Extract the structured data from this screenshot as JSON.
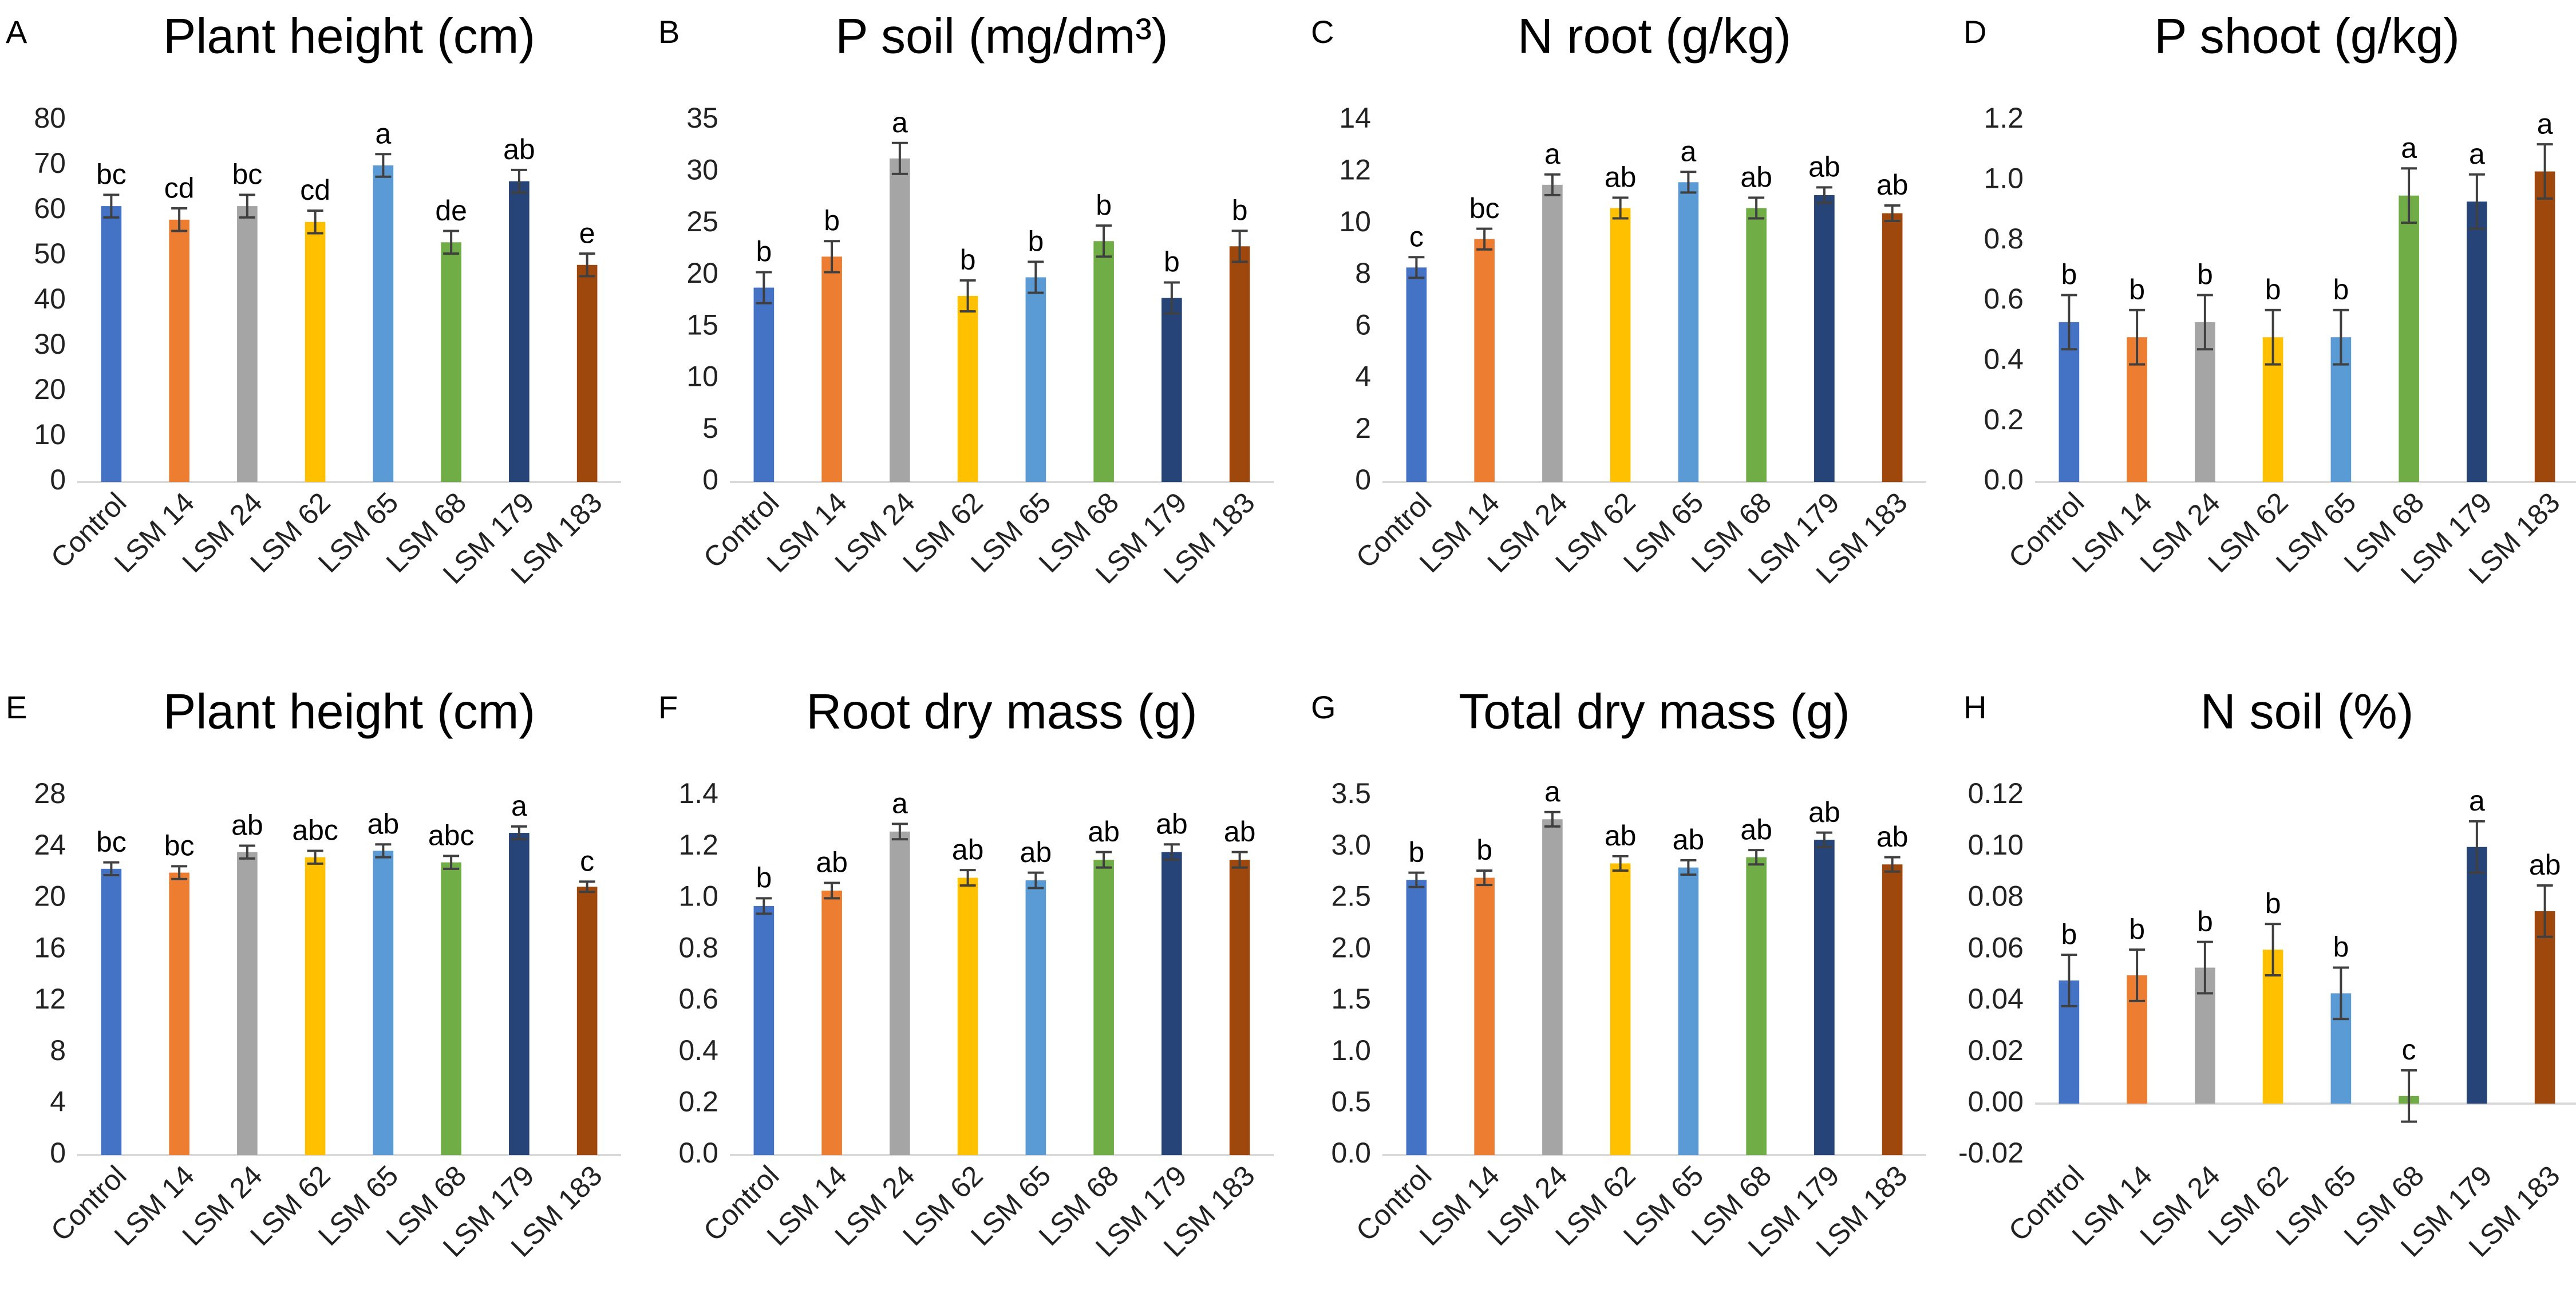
{
  "chart_data": [
    {
      "type": "bar",
      "panel": "A",
      "title": "Plant height (cm)",
      "categories": [
        "Control",
        "LSM 14",
        "LSM 24",
        "LSM 62",
        "LSM 65",
        "LSM 68",
        "LSM 179",
        "LSM 183"
      ],
      "values": [
        61,
        58,
        61,
        57.5,
        70,
        53,
        66.5,
        48
      ],
      "errors": [
        2.5,
        2.5,
        2.5,
        2.5,
        2.5,
        2.5,
        2.5,
        2.5
      ],
      "annotations": [
        "bc",
        "cd",
        "bc",
        "cd",
        "a",
        "de",
        "ab",
        "e"
      ],
      "colors": [
        "#4472c4",
        "#ed7d31",
        "#a5a5a5",
        "#ffc000",
        "#5b9bd5",
        "#70ad47",
        "#264478",
        "#9e480e"
      ],
      "ylim": [
        0,
        80
      ],
      "yticks": [
        0,
        10,
        20,
        30,
        40,
        50,
        60,
        70,
        80
      ]
    },
    {
      "type": "bar",
      "panel": "B",
      "title": "P soil (mg/dm³)",
      "categories": [
        "Control",
        "LSM 14",
        "LSM 24",
        "LSM 62",
        "LSM 65",
        "LSM 68",
        "LSM 179",
        "LSM 183"
      ],
      "values": [
        18.8,
        21.8,
        31.3,
        18,
        19.8,
        23.3,
        17.8,
        22.8
      ],
      "errors": [
        1.5,
        1.5,
        1.5,
        1.5,
        1.5,
        1.5,
        1.5,
        1.5
      ],
      "annotations": [
        "b",
        "b",
        "a",
        "b",
        "b",
        "b",
        "b",
        "b"
      ],
      "colors": [
        "#4472c4",
        "#ed7d31",
        "#a5a5a5",
        "#ffc000",
        "#5b9bd5",
        "#70ad47",
        "#264478",
        "#9e480e"
      ],
      "ylim": [
        0,
        35
      ],
      "yticks": [
        0,
        5,
        10,
        15,
        20,
        25,
        30,
        35
      ]
    },
    {
      "type": "bar",
      "panel": "C",
      "title": "N root (g/kg)",
      "categories": [
        "Control",
        "LSM 14",
        "LSM 24",
        "LSM 62",
        "LSM 65",
        "LSM 68",
        "LSM 179",
        "LSM 183"
      ],
      "values": [
        8.3,
        9.4,
        11.5,
        10.6,
        11.6,
        10.6,
        11.1,
        10.4
      ],
      "errors": [
        0.4,
        0.4,
        0.4,
        0.4,
        0.4,
        0.4,
        0.3,
        0.3
      ],
      "annotations": [
        "c",
        "bc",
        "a",
        "ab",
        "a",
        "ab",
        "ab",
        "ab"
      ],
      "colors": [
        "#4472c4",
        "#ed7d31",
        "#a5a5a5",
        "#ffc000",
        "#5b9bd5",
        "#70ad47",
        "#264478",
        "#9e480e"
      ],
      "ylim": [
        0,
        14
      ],
      "yticks": [
        0,
        2,
        4,
        6,
        8,
        10,
        12,
        14
      ]
    },
    {
      "type": "bar",
      "panel": "D",
      "title": "P shoot (g/kg)",
      "categories": [
        "Control",
        "LSM 14",
        "LSM 24",
        "LSM 62",
        "LSM 65",
        "LSM 68",
        "LSM 179",
        "LSM 183"
      ],
      "values": [
        0.53,
        0.48,
        0.53,
        0.48,
        0.48,
        0.95,
        0.93,
        1.03
      ],
      "errors": [
        0.09,
        0.09,
        0.09,
        0.09,
        0.09,
        0.09,
        0.09,
        0.09
      ],
      "annotations": [
        "b",
        "b",
        "b",
        "b",
        "b",
        "a",
        "a",
        "a"
      ],
      "colors": [
        "#4472c4",
        "#ed7d31",
        "#a5a5a5",
        "#ffc000",
        "#5b9bd5",
        "#70ad47",
        "#264478",
        "#9e480e"
      ],
      "ylim": [
        0,
        1.2
      ],
      "yticks": [
        {
          "value": 0,
          "label": "0.0"
        },
        0.2,
        0.4,
        0.6,
        0.8,
        {
          "value": 1,
          "label": "1.0"
        },
        1.2
      ]
    },
    {
      "type": "bar",
      "panel": "E",
      "title": "Plant height (cm)",
      "categories": [
        "Control",
        "LSM 14",
        "LSM 24",
        "LSM 62",
        "LSM 65",
        "LSM 68",
        "LSM 179",
        "LSM 183"
      ],
      "values": [
        22.3,
        22,
        23.6,
        23.2,
        23.7,
        22.8,
        25.1,
        20.9
      ],
      "errors": [
        0.5,
        0.5,
        0.5,
        0.5,
        0.5,
        0.5,
        0.5,
        0.4
      ],
      "annotations": [
        "bc",
        "bc",
        "ab",
        "abc",
        "ab",
        "abc",
        "a",
        "c"
      ],
      "colors": [
        "#4472c4",
        "#ed7d31",
        "#a5a5a5",
        "#ffc000",
        "#5b9bd5",
        "#70ad47",
        "#264478",
        "#9e480e"
      ],
      "ylim": [
        0,
        28
      ],
      "yticks": [
        0,
        4,
        8,
        12,
        16,
        20,
        24,
        28
      ]
    },
    {
      "type": "bar",
      "panel": "F",
      "title": "Root dry mass (g)",
      "categories": [
        "Control",
        "LSM 14",
        "LSM 24",
        "LSM 62",
        "LSM 65",
        "LSM 68",
        "LSM 179",
        "LSM 183"
      ],
      "values": [
        0.97,
        1.03,
        1.26,
        1.08,
        1.07,
        1.15,
        1.18,
        1.15
      ],
      "errors": [
        0.03,
        0.03,
        0.03,
        0.03,
        0.03,
        0.03,
        0.03,
        0.03
      ],
      "annotations": [
        "b",
        "ab",
        "a",
        "ab",
        "ab",
        "ab",
        "ab",
        "ab"
      ],
      "colors": [
        "#4472c4",
        "#ed7d31",
        "#a5a5a5",
        "#ffc000",
        "#5b9bd5",
        "#70ad47",
        "#264478",
        "#9e480e"
      ],
      "ylim": [
        0,
        1.4
      ],
      "yticks": [
        {
          "value": 0,
          "label": "0.0"
        },
        0.2,
        0.4,
        0.6,
        0.8,
        {
          "value": 1,
          "label": "1.0"
        },
        1.2,
        1.4
      ]
    },
    {
      "type": "bar",
      "panel": "G",
      "title": "Total dry mass (g)",
      "categories": [
        "Control",
        "LSM 14",
        "LSM 24",
        "LSM 62",
        "LSM 65",
        "LSM 68",
        "LSM 179",
        "LSM 183"
      ],
      "values": [
        2.68,
        2.7,
        3.27,
        2.84,
        2.8,
        2.9,
        3.07,
        2.83
      ],
      "errors": [
        0.07,
        0.07,
        0.07,
        0.07,
        0.07,
        0.07,
        0.07,
        0.07
      ],
      "annotations": [
        "b",
        "b",
        "a",
        "ab",
        "ab",
        "ab",
        "ab",
        "ab"
      ],
      "colors": [
        "#4472c4",
        "#ed7d31",
        "#a5a5a5",
        "#ffc000",
        "#5b9bd5",
        "#70ad47",
        "#264478",
        "#9e480e"
      ],
      "ylim": [
        0,
        3.5
      ],
      "yticks": [
        {
          "value": 0,
          "label": "0.0"
        },
        0.5,
        {
          "value": 1,
          "label": "1.0"
        },
        1.5,
        {
          "value": 2,
          "label": "2.0"
        },
        2.5,
        {
          "value": 3,
          "label": "3.0"
        },
        3.5
      ]
    },
    {
      "type": "bar",
      "panel": "H",
      "title": "N soil (%)",
      "categories": [
        "Control",
        "LSM 14",
        "LSM 24",
        "LSM 62",
        "LSM 65",
        "LSM 68",
        "LSM 179",
        "LSM 183"
      ],
      "values": [
        0.048,
        0.05,
        0.053,
        0.06,
        0.043,
        0.003,
        0.1,
        0.075
      ],
      "errors": [
        0.01,
        0.01,
        0.01,
        0.01,
        0.01,
        0.01,
        0.01,
        0.01
      ],
      "annotations": [
        "b",
        "b",
        "b",
        "b",
        "b",
        "c",
        "a",
        "ab"
      ],
      "colors": [
        "#4472c4",
        "#ed7d31",
        "#a5a5a5",
        "#ffc000",
        "#5b9bd5",
        "#70ad47",
        "#264478",
        "#9e480e"
      ],
      "ylim": [
        -0.02,
        0.12
      ],
      "yticks": [
        {
          "value": -0.02,
          "label": "-0.02"
        },
        {
          "value": 0,
          "label": "0.00"
        },
        {
          "value": 0.02,
          "label": "0.02"
        },
        {
          "value": 0.04,
          "label": "0.04"
        },
        {
          "value": 0.06,
          "label": "0.06"
        },
        {
          "value": 0.08,
          "label": "0.08"
        },
        {
          "value": 0.1,
          "label": "0.10"
        },
        {
          "value": 0.12,
          "label": "0.12"
        }
      ]
    }
  ]
}
